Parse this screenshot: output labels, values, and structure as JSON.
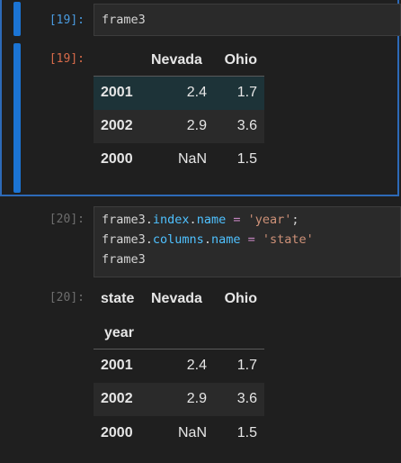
{
  "cell19": {
    "in_prompt": "[19]:",
    "out_prompt": "[19]:",
    "code": "frame3",
    "table": {
      "columns": [
        "Nevada",
        "Ohio"
      ],
      "rows": [
        {
          "index": "2001",
          "nevada": "2.4",
          "ohio": "1.7"
        },
        {
          "index": "2002",
          "nevada": "2.9",
          "ohio": "3.6"
        },
        {
          "index": "2000",
          "nevada": "NaN",
          "ohio": "1.5"
        }
      ]
    }
  },
  "cell20": {
    "in_prompt": "[20]:",
    "out_prompt": "[20]:",
    "code": {
      "line1": {
        "a": "frame3.",
        "b": "index",
        "c": ".",
        "d": "name",
        "e": " ",
        "op": "=",
        "f": " ",
        "str": "'year'",
        "g": ";"
      },
      "line2": {
        "a": "frame3.",
        "b": "columns",
        "c": ".",
        "d": "name",
        "e": " ",
        "op": "=",
        "f": " ",
        "str": "'state'"
      },
      "line3": "frame3"
    },
    "table": {
      "columns_name": "state",
      "index_name": "year",
      "columns": [
        "Nevada",
        "Ohio"
      ],
      "rows": [
        {
          "index": "2001",
          "nevada": "2.4",
          "ohio": "1.7"
        },
        {
          "index": "2002",
          "nevada": "2.9",
          "ohio": "3.6"
        },
        {
          "index": "2000",
          "nevada": "NaN",
          "ohio": "1.5"
        }
      ]
    }
  },
  "colors": {
    "selection_border": "#2d6ab8",
    "cell_bar": "#1b74d4",
    "in_prompt_active": "#4a9be0",
    "out_prompt_active": "#d86b4a",
    "prompt_idle": "#6e6e6e",
    "background": "#1f1f1f"
  }
}
